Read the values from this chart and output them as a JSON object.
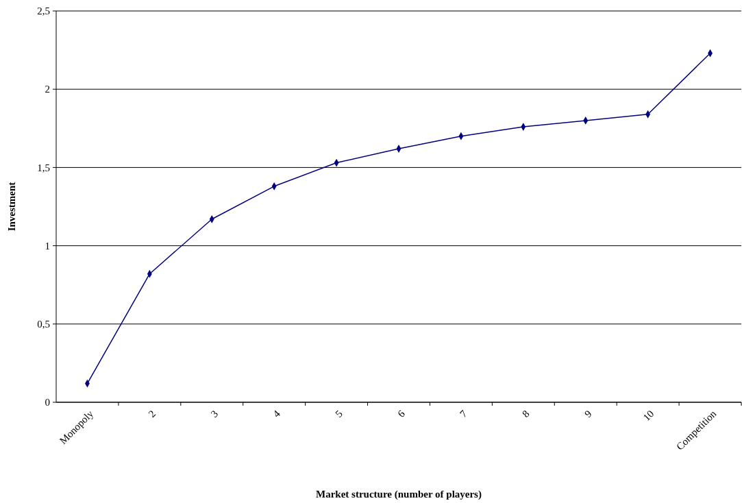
{
  "chart_data": {
    "type": "line",
    "xlabel": "Market structure (number of players)",
    "ylabel": "Investment",
    "categories": [
      "Monopoly",
      "2",
      "3",
      "4",
      "5",
      "6",
      "7",
      "8",
      "9",
      "10",
      "Competition"
    ],
    "series": [
      {
        "color": "#000080",
        "values": [
          0.12,
          0.82,
          1.17,
          1.38,
          1.53,
          1.62,
          1.7,
          1.76,
          1.8,
          1.84,
          2.23
        ]
      }
    ],
    "ylim": [
      0,
      2.5
    ],
    "yticks": [
      0,
      {
        "value": 0.5,
        "label": "0,5"
      },
      1,
      {
        "value": 1.5,
        "label": "1,5"
      },
      2,
      {
        "value": 2.5,
        "label": "2,5"
      }
    ],
    "grid": "y",
    "marker": "diamond",
    "line_style": "solid"
  }
}
